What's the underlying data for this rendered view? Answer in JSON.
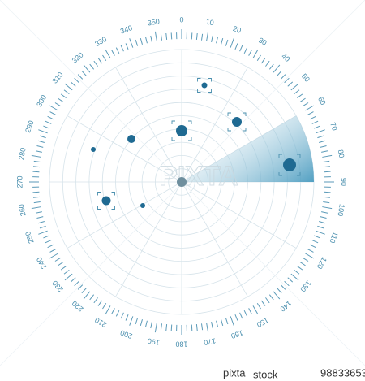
{
  "dial": {
    "labels": [
      0,
      10,
      20,
      30,
      40,
      50,
      60,
      70,
      80,
      90,
      100,
      110,
      120,
      130,
      140,
      150,
      160,
      170,
      180,
      190,
      200,
      210,
      220,
      230,
      240,
      250,
      260,
      270,
      280,
      290,
      300,
      310,
      320,
      330,
      340,
      350
    ]
  },
  "watermark": "PIXTA",
  "footer": {
    "brand": "pixta",
    "sub": "stock",
    "id": "98833653"
  }
}
